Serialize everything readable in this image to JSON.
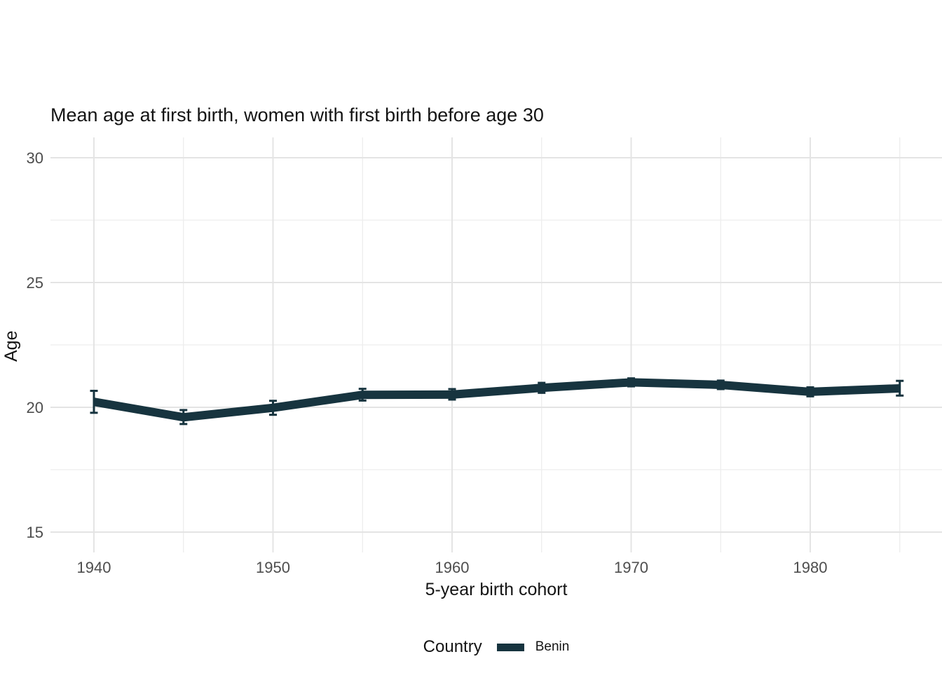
{
  "chart": {
    "title": "Mean age at first birth, women with first birth before age 30",
    "x_axis_title": "5-year birth cohort",
    "y_axis_title": "Age",
    "legend": {
      "title": "Country",
      "entries": [
        {
          "label": "Benin",
          "color": "#17343f"
        }
      ]
    }
  },
  "chart_data": {
    "type": "line",
    "title": "Mean age at first birth, women with first birth before age 30",
    "xlabel": "5-year birth cohort",
    "ylabel": "Age",
    "grid": true,
    "legend_position": "bottom",
    "error_bars": true,
    "xlim": [
      1937.6,
      1987.4
    ],
    "ylim": [
      14.2,
      30.8
    ],
    "x_ticks": [
      1940,
      1950,
      1960,
      1970,
      1980
    ],
    "x_minor": [
      1945,
      1955,
      1965,
      1975,
      1985
    ],
    "y_ticks": [
      15,
      20,
      25,
      30
    ],
    "y_minor": [
      17.5,
      22.5,
      27.5
    ],
    "series": [
      {
        "name": "Benin",
        "color": "#17343f",
        "x": [
          1940,
          1945,
          1950,
          1955,
          1960,
          1965,
          1970,
          1975,
          1980,
          1985
        ],
        "y": [
          20.22,
          19.6,
          19.98,
          20.5,
          20.51,
          20.78,
          21.0,
          20.9,
          20.62,
          20.76
        ],
        "ci_low": [
          19.78,
          19.33,
          19.7,
          20.27,
          20.31,
          20.58,
          20.84,
          20.73,
          20.44,
          20.47
        ],
        "ci_high": [
          20.66,
          19.89,
          20.26,
          20.74,
          20.73,
          20.98,
          21.16,
          21.07,
          20.8,
          21.06
        ]
      }
    ]
  },
  "colors": {
    "series": "#17343f",
    "grid_major": "#e4e4e4",
    "grid_minor": "#ededed",
    "tick_label": "#4d4d4d",
    "text": "#141414",
    "background": "#ffffff"
  }
}
